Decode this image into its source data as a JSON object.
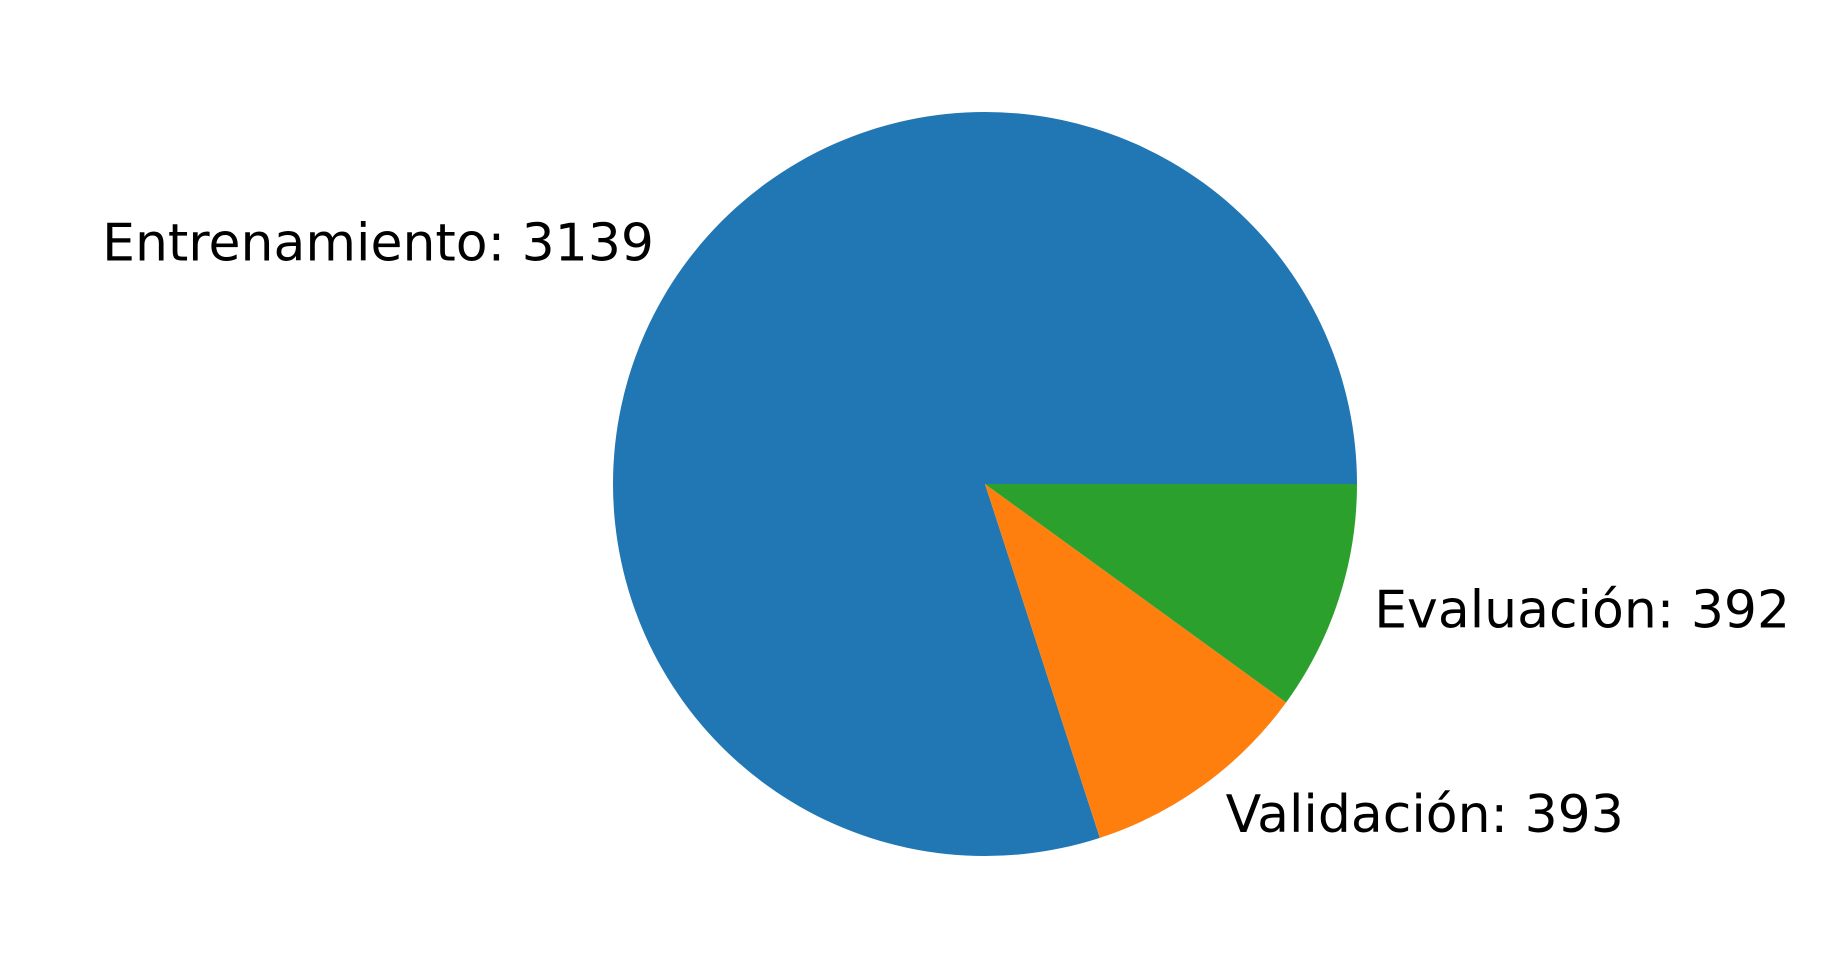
{
  "chart_data": {
    "type": "pie",
    "title": "",
    "start_angle_deg": 0,
    "direction": "counterclockwise",
    "slices": [
      {
        "name": "Entrenamiento",
        "value": 3139,
        "label": "Entrenamiento: 3139",
        "color": "#2077b4"
      },
      {
        "name": "Validación",
        "value": 393,
        "label": "Validación: 393",
        "color": "#ff7f0e"
      },
      {
        "name": "Evaluación",
        "value": 392,
        "label": "Evaluación: 392",
        "color": "#2ca02c"
      }
    ]
  }
}
